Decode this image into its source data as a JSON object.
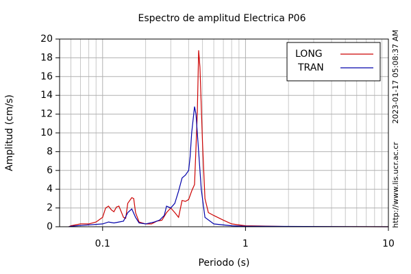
{
  "chart_data": {
    "type": "line",
    "title": "Espectro de amplitud Electrica P06",
    "xlabel": "Periodo (s)",
    "ylabel": "Amplitud (cm/s)",
    "timestamp": "2023-01-17 05:08:37 AM",
    "source": "http://www.lis.ucr.ac.cr",
    "xscale": "log",
    "xlim": [
      0.05,
      10
    ],
    "ylim": [
      0,
      20
    ],
    "xticks": [
      0.1,
      1,
      10
    ],
    "xminorticks": [
      0.06,
      0.07,
      0.08,
      0.09,
      0.2,
      0.3,
      0.4,
      0.5,
      0.6,
      0.7,
      0.8,
      0.9,
      2,
      3,
      4,
      5,
      6,
      7,
      8,
      9
    ],
    "yticks": [
      0,
      2,
      4,
      6,
      8,
      10,
      12,
      14,
      16,
      18,
      20
    ],
    "grid": true,
    "legend": "upper right",
    "series": [
      {
        "name": "LONG",
        "color": "#cc0000",
        "x": [
          0.058,
          0.06,
          0.07,
          0.08,
          0.09,
          0.1,
          0.105,
          0.11,
          0.115,
          0.12,
          0.125,
          0.13,
          0.14,
          0.145,
          0.15,
          0.16,
          0.165,
          0.17,
          0.18,
          0.2,
          0.22,
          0.24,
          0.26,
          0.28,
          0.3,
          0.32,
          0.34,
          0.36,
          0.38,
          0.4,
          0.42,
          0.44,
          0.46,
          0.47,
          0.48,
          0.5,
          0.52,
          0.55,
          0.6,
          0.7,
          0.8,
          1,
          2,
          5,
          10
        ],
        "values": [
          0,
          0.1,
          0.3,
          0.3,
          0.5,
          1.0,
          2.0,
          2.2,
          1.8,
          1.6,
          2.1,
          2.2,
          1.0,
          0.9,
          2.5,
          3.1,
          3.0,
          1.5,
          0.5,
          0.3,
          0.3,
          0.6,
          0.7,
          1.5,
          2.0,
          1.5,
          1.0,
          2.8,
          2.7,
          2.9,
          3.8,
          4.5,
          12,
          18.8,
          17,
          9,
          3,
          1.5,
          1.2,
          0.7,
          0.3,
          0.1,
          0.02,
          0.01,
          0
        ]
      },
      {
        "name": "TRAN",
        "color": "#0000aa",
        "x": [
          0.058,
          0.06,
          0.08,
          0.1,
          0.11,
          0.12,
          0.13,
          0.14,
          0.15,
          0.16,
          0.17,
          0.18,
          0.2,
          0.23,
          0.25,
          0.27,
          0.28,
          0.3,
          0.32,
          0.34,
          0.36,
          0.38,
          0.4,
          0.41,
          0.42,
          0.44,
          0.45,
          0.47,
          0.49,
          0.52,
          0.6,
          0.8,
          1,
          10
        ],
        "values": [
          0,
          0.05,
          0.2,
          0.3,
          0.5,
          0.4,
          0.5,
          0.6,
          1.5,
          1.9,
          1.0,
          0.4,
          0.3,
          0.5,
          0.7,
          1.2,
          2.2,
          2.0,
          2.5,
          3.8,
          5.2,
          5.5,
          6.0,
          7.5,
          10,
          12.8,
          12,
          8,
          4,
          1,
          0.3,
          0.1,
          0.05,
          0
        ]
      }
    ]
  }
}
